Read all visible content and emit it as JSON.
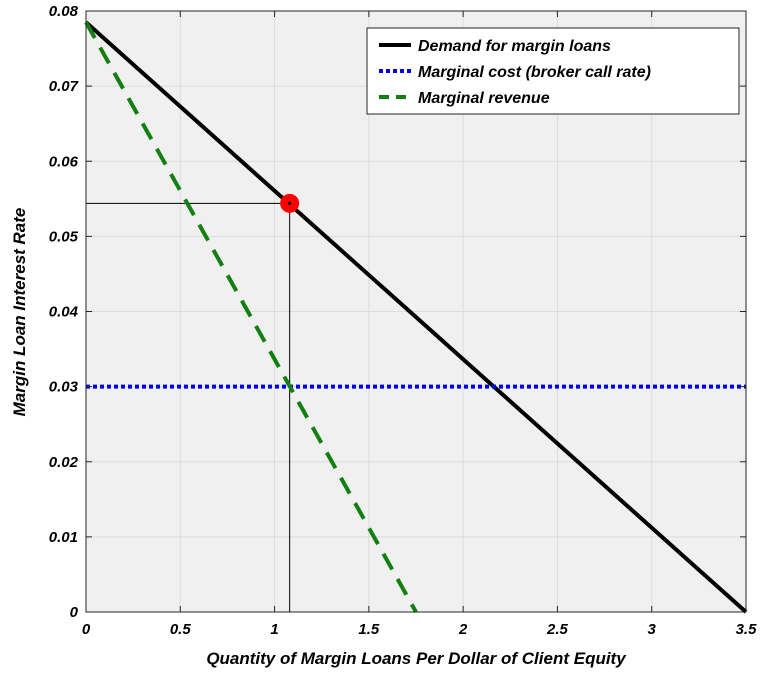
{
  "chart_data": {
    "type": "line",
    "title": "",
    "xlabel": "Quantity of Margin Loans Per Dollar of Client Equity",
    "ylabel": "Margin Loan Interest Rate",
    "xlim": [
      0,
      3.5
    ],
    "ylim": [
      0,
      0.08
    ],
    "xticks": [
      0,
      0.5,
      1,
      1.5,
      2,
      2.5,
      3,
      3.5
    ],
    "xtick_labels": [
      "0",
      "0.5",
      "1",
      "1.5",
      "2",
      "2.5",
      "3",
      "3.5"
    ],
    "yticks": [
      0,
      0.01,
      0.02,
      0.03,
      0.04,
      0.05,
      0.06,
      0.07,
      0.08
    ],
    "ytick_labels": [
      "0",
      "0.01",
      "0.02",
      "0.03",
      "0.04",
      "0.05",
      "0.06",
      "0.07",
      "0.08"
    ],
    "grid": true,
    "legend_position": "top-right",
    "series": [
      {
        "name": "Demand for margin loans",
        "style": "solid",
        "color": "#000000",
        "x": [
          0,
          3.5
        ],
        "y": [
          0.0785,
          0
        ]
      },
      {
        "name": "Marginal cost (broker call rate)",
        "style": "dotted",
        "color": "#0000e6",
        "x": [
          0,
          3.5
        ],
        "y": [
          0.03,
          0.03
        ]
      },
      {
        "name": "Marginal revenue",
        "style": "dashed",
        "color": "#118011",
        "x": [
          0,
          1.75
        ],
        "y": [
          0.0785,
          0
        ]
      }
    ],
    "optimum_point": {
      "x": 1.08,
      "y": 0.0544,
      "color": "#ff0000"
    },
    "reference_lines": {
      "x": 1.08,
      "y": 0.0544,
      "color": "#000000"
    }
  }
}
